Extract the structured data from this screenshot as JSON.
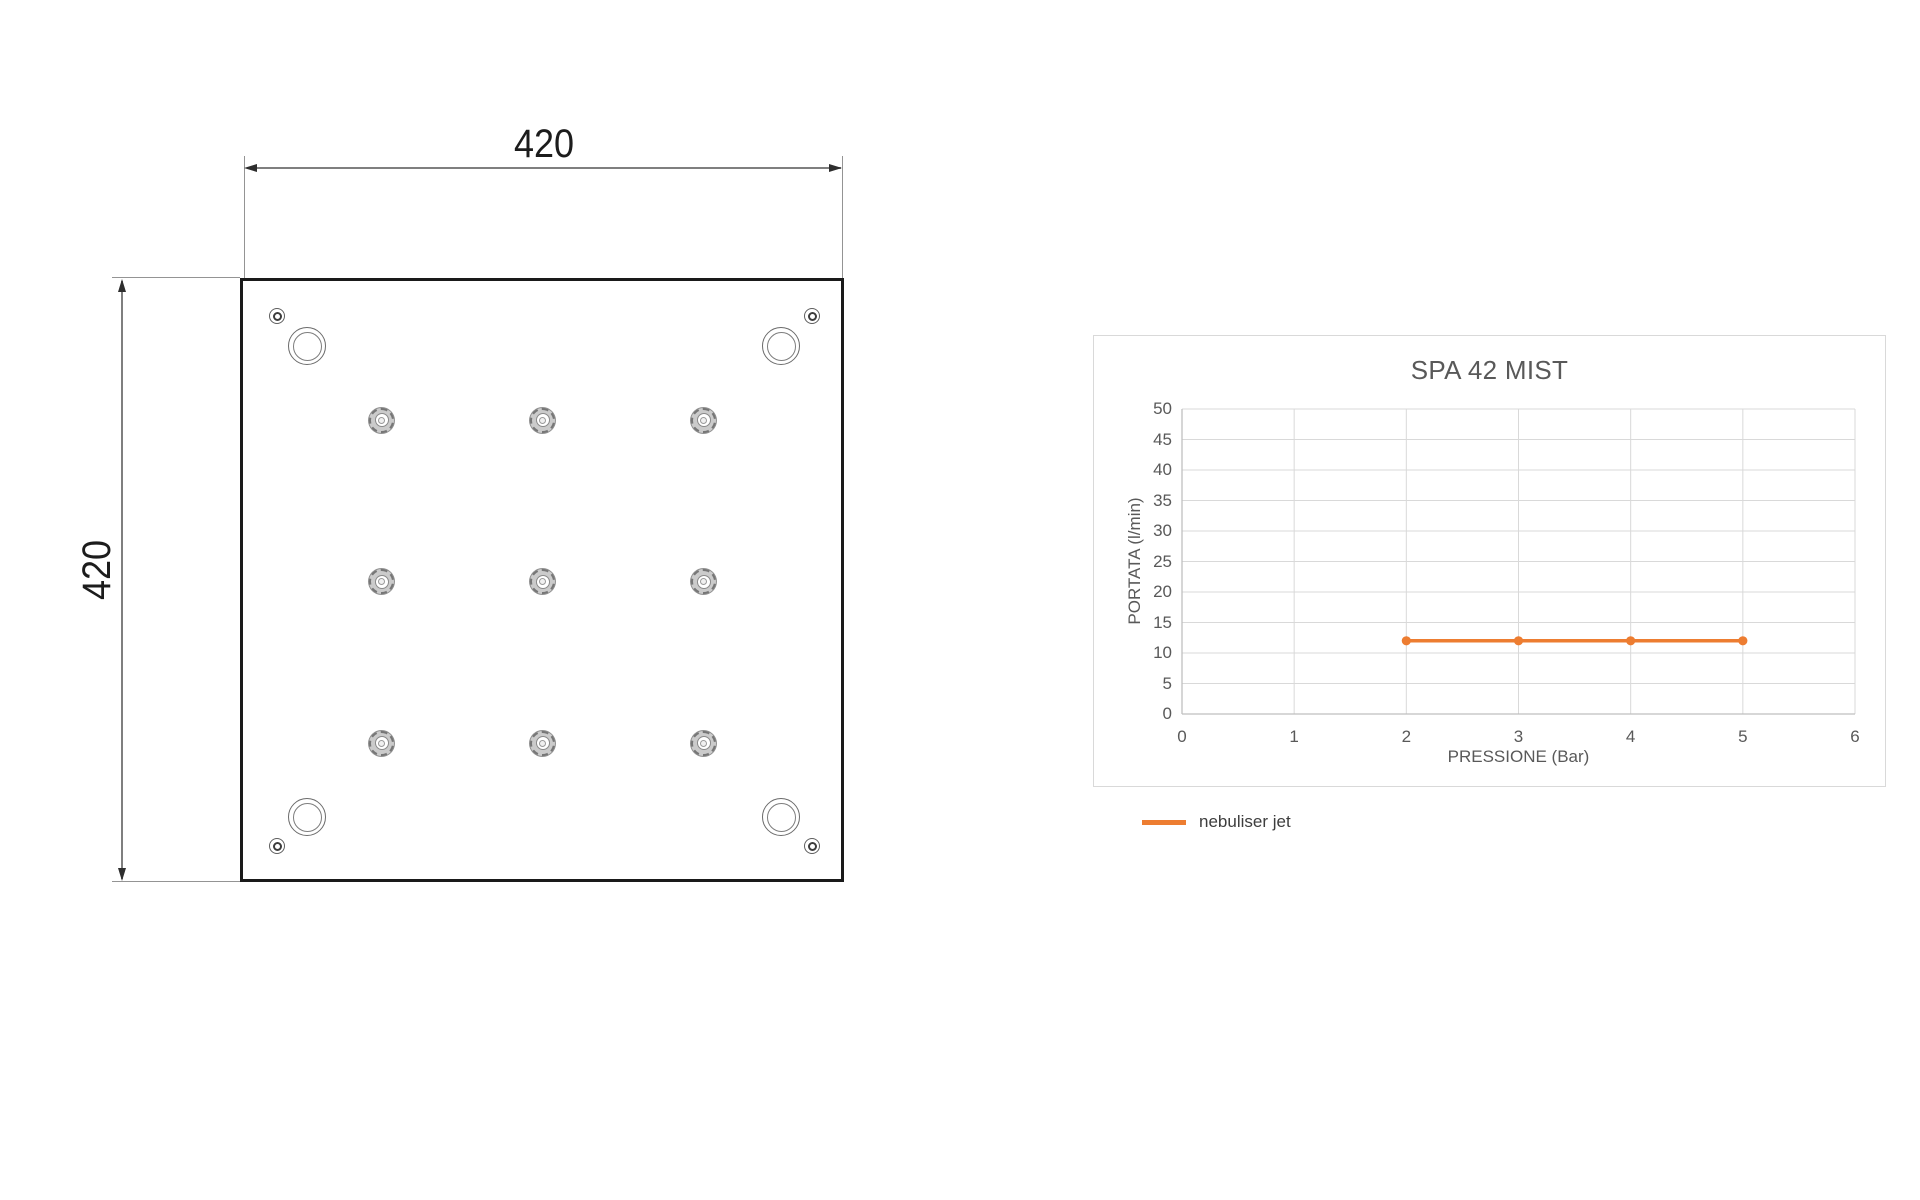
{
  "page": {
    "background": "#ffffff"
  },
  "drawing": {
    "type": "plate-top-view",
    "width_dimension_label": "420",
    "height_dimension_label": "420",
    "nozzle_rows": 3,
    "nozzle_cols": 3,
    "corner_mount_holes": 4,
    "corner_screw_holes": 4
  },
  "chart_data": {
    "type": "line",
    "title": "SPA 42 MIST",
    "xlabel": "PRESSIONE (Bar)",
    "ylabel": "PORTATA (l/min)",
    "xlim": [
      0,
      6
    ],
    "ylim": [
      0,
      50
    ],
    "x_ticks": [
      0,
      1,
      2,
      3,
      4,
      5,
      6
    ],
    "y_ticks": [
      0,
      5,
      10,
      15,
      20,
      25,
      30,
      35,
      40,
      45,
      50
    ],
    "grid": true,
    "legend_position": "bottom-left-outside",
    "series": [
      {
        "name": "nebuliser jet",
        "color": "#ED7D31",
        "x": [
          2,
          3,
          4,
          5
        ],
        "y": [
          12,
          12,
          12,
          12
        ],
        "marker": "circle",
        "line_width": 3.5
      }
    ],
    "colors": {
      "grid": "#D9D9D9",
      "axis": "#BFBFBF",
      "text": "#595959",
      "border": "#D9D9D9"
    }
  }
}
